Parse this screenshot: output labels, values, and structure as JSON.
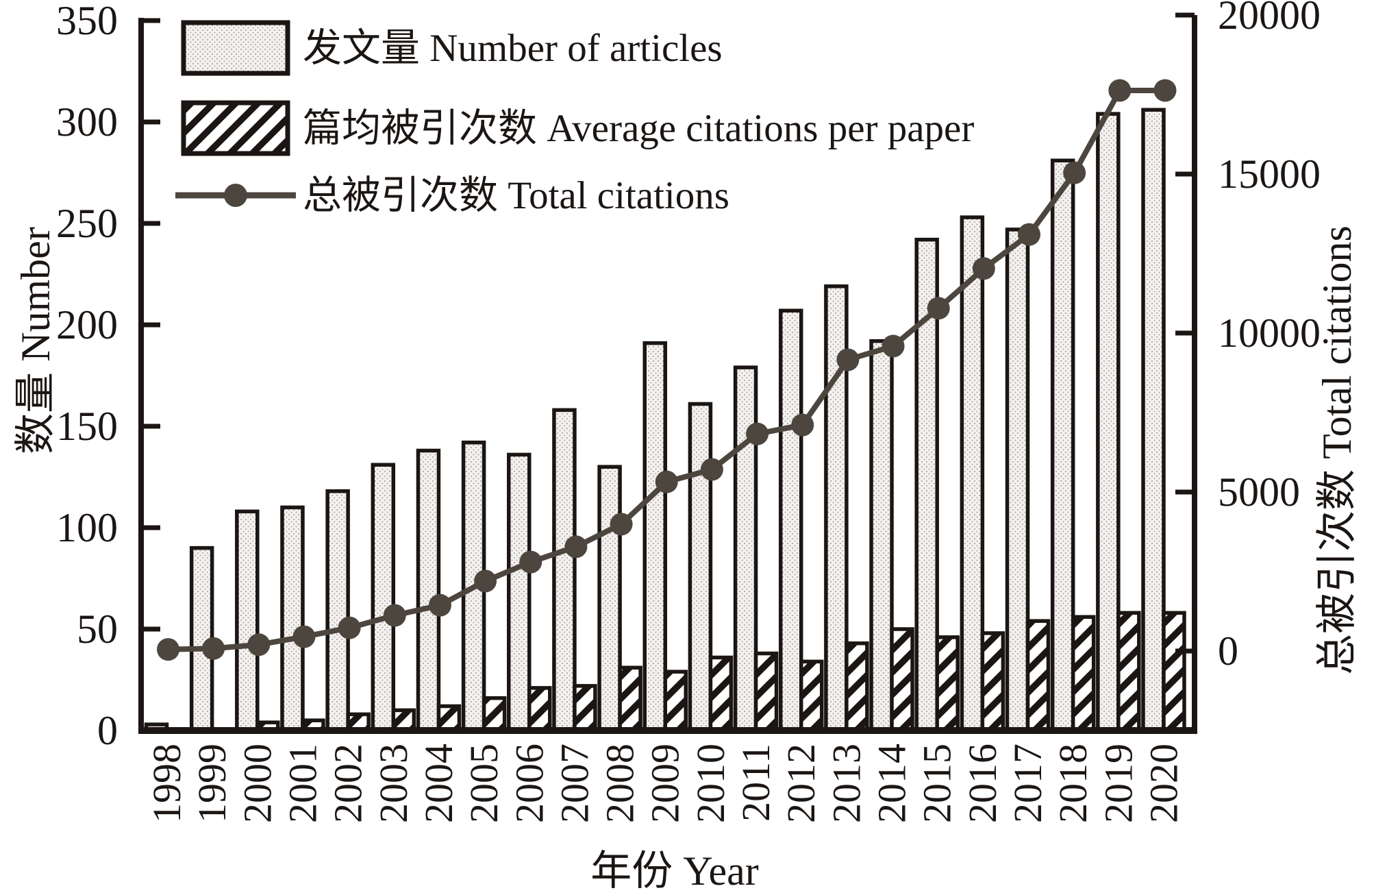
{
  "chart_data": {
    "type": "bar",
    "subtype": "grouped-bars-with-line-dual-axis",
    "categories": [
      "1998",
      "1999",
      "2000",
      "2001",
      "2002",
      "2003",
      "2004",
      "2005",
      "2006",
      "2007",
      "2008",
      "2009",
      "2010",
      "2011",
      "2012",
      "2013",
      "2014",
      "2015",
      "2016",
      "2017",
      "2018",
      "2019",
      "2020"
    ],
    "series": [
      {
        "name": "发文量 Number of articles",
        "type": "bar",
        "axis": "left",
        "style": "stipple",
        "values": [
          3,
          90,
          108,
          110,
          118,
          131,
          138,
          142,
          136,
          158,
          130,
          191,
          161,
          179,
          207,
          219,
          192,
          242,
          253,
          247,
          281,
          304,
          306
        ]
      },
      {
        "name": "篇均被引次数 Average citations per paper",
        "type": "bar",
        "axis": "left",
        "style": "hatch",
        "values": [
          0.3,
          0.5,
          4,
          5,
          8,
          10,
          12,
          16,
          21,
          22,
          31,
          29,
          36,
          38,
          34,
          43,
          50,
          46,
          48,
          54,
          56,
          58,
          58
        ]
      },
      {
        "name": "总被引次数 Total citations",
        "type": "line",
        "axis": "right",
        "style": "line-dot",
        "values": [
          50,
          80,
          200,
          450,
          730,
          1120,
          1440,
          2200,
          2800,
          3280,
          3990,
          5320,
          5710,
          6830,
          7110,
          9160,
          9590,
          10780,
          12030,
          13100,
          15040,
          17630,
          17630
        ]
      }
    ],
    "left_axis": {
      "label": "数量 Number",
      "min": 0,
      "max": 350,
      "tick_step": 50,
      "ticks": [
        0,
        50,
        100,
        150,
        200,
        250,
        300,
        350
      ]
    },
    "right_axis": {
      "label": "总被引次数 Total citations",
      "min": 0,
      "max": 20000,
      "tick_step": 5000,
      "ticks": [
        0,
        5000,
        10000,
        15000,
        20000
      ]
    },
    "x_axis": {
      "label": "年份 Year"
    },
    "legend": {
      "position": "top-left",
      "entries": [
        "发文量 Number of articles",
        "篇均被引次数 Average citations per paper",
        "总被引次数 Total citations"
      ]
    },
    "grid": "off",
    "colors": {
      "ink": "#1b1613",
      "line_series": "#4d463f",
      "stipple_fill": "#f3f1ef",
      "stipple_dot": "#8a847e",
      "hatch_fg": "#1b1613",
      "background": "#ffffff"
    }
  }
}
